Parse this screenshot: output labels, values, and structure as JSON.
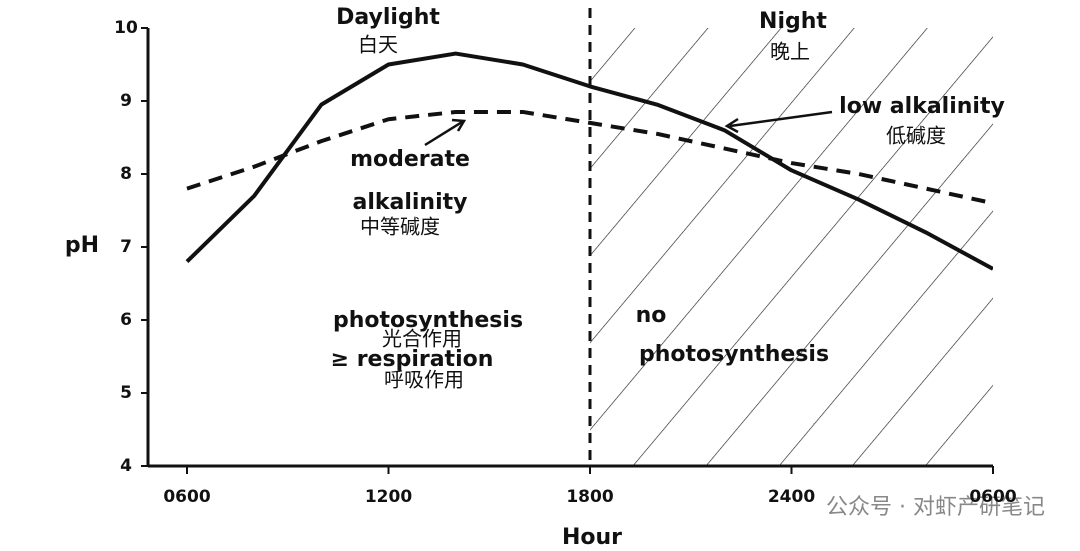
{
  "chart_data": {
    "type": "line",
    "x_label": "Hour",
    "y_label": "pH",
    "x": [
      6,
      8,
      10,
      12,
      14,
      16,
      18,
      20,
      22,
      24,
      26,
      28,
      30
    ],
    "series": [
      {
        "color": "#111111",
        "style": "solid",
        "values": [
          6.8,
          7.7,
          8.95,
          9.5,
          9.65,
          9.5,
          9.2,
          8.95,
          8.6,
          8.05,
          7.65,
          7.2,
          6.7
        ]
      },
      {
        "color": "#111111",
        "style": "dashed",
        "values": [
          7.8,
          8.1,
          8.45,
          8.75,
          8.85,
          8.85,
          8.7,
          8.55,
          8.35,
          8.15,
          8.0,
          7.8,
          7.6
        ]
      }
    ],
    "xlim": [
      6,
      30
    ],
    "xticks": [
      {
        "value": 6,
        "label": "0600"
      },
      {
        "value": 12,
        "label": "1200"
      },
      {
        "value": 18,
        "label": "1800"
      },
      {
        "value": 24,
        "label": "2400"
      },
      {
        "value": 30,
        "label": "0600"
      }
    ],
    "ylim": [
      4,
      10
    ],
    "yticks": [
      4,
      5,
      6,
      7,
      8,
      9,
      10
    ],
    "annotations": [
      "Daylight",
      "白天",
      "Night",
      "晚上",
      "low alkalinity",
      "低碱度",
      "moderate",
      "alkalinity",
      "中等碱度",
      "photosynthesis",
      "光合作用",
      "≥ respiration",
      "呼吸作用",
      "no",
      "photosynthesis"
    ],
    "watermark": "公众号 · 对虾产研笔记"
  }
}
